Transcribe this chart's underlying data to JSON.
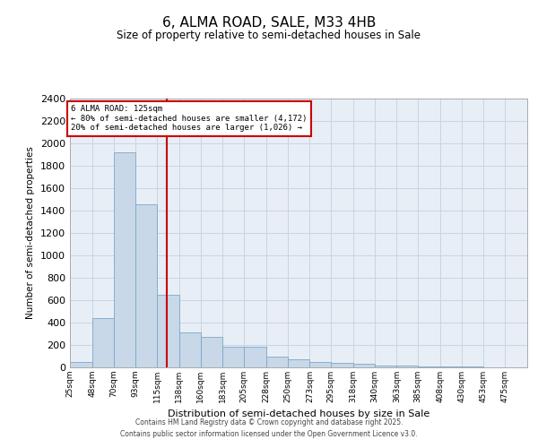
{
  "title": "6, ALMA ROAD, SALE, M33 4HB",
  "subtitle": "Size of property relative to semi-detached houses in Sale",
  "xlabel": "Distribution of semi-detached houses by size in Sale",
  "ylabel": "Number of semi-detached properties",
  "property_size": 125,
  "property_label": "6 ALMA ROAD: 125sqm",
  "pct_smaller": 80,
  "pct_larger": 20,
  "count_smaller": 4172,
  "count_larger": 1026,
  "bar_color": "#c8d8e8",
  "bar_edge_color": "#7aa8c8",
  "line_color": "#cc0000",
  "annotation_box_color": "#cc0000",
  "grid_color": "#c8d4e4",
  "background_color": "#e8eef6",
  "categories": [
    "25sqm",
    "48sqm",
    "70sqm",
    "93sqm",
    "115sqm",
    "138sqm",
    "160sqm",
    "183sqm",
    "205sqm",
    "228sqm",
    "250sqm",
    "273sqm",
    "295sqm",
    "318sqm",
    "340sqm",
    "363sqm",
    "385sqm",
    "408sqm",
    "430sqm",
    "453sqm",
    "475sqm"
  ],
  "bin_edges": [
    25,
    48,
    70,
    93,
    115,
    138,
    160,
    183,
    205,
    228,
    250,
    273,
    295,
    318,
    340,
    363,
    385,
    408,
    430,
    453,
    475,
    498
  ],
  "values": [
    45,
    440,
    1920,
    1460,
    650,
    310,
    270,
    185,
    185,
    100,
    75,
    50,
    40,
    35,
    20,
    20,
    10,
    8,
    5,
    3,
    0
  ],
  "ylim": [
    0,
    2400
  ],
  "yticks": [
    0,
    200,
    400,
    600,
    800,
    1000,
    1200,
    1400,
    1600,
    1800,
    2000,
    2200,
    2400
  ],
  "footnote1": "Contains HM Land Registry data © Crown copyright and database right 2025.",
  "footnote2": "Contains public sector information licensed under the Open Government Licence v3.0."
}
